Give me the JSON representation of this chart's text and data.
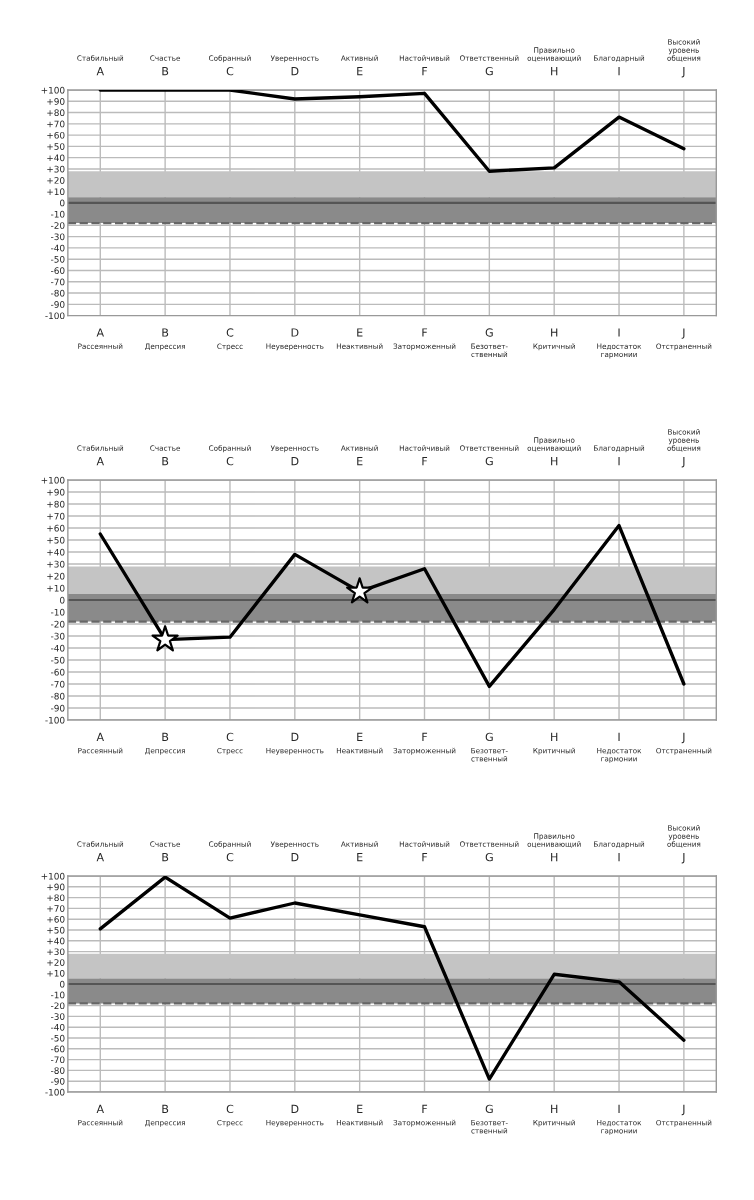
{
  "chart_data": [
    {
      "type": "line",
      "categories": [
        "A",
        "B",
        "C",
        "D",
        "E",
        "F",
        "G",
        "H",
        "I",
        "J"
      ],
      "series": [
        {
          "color": "#000000",
          "values": [
            100,
            100,
            100,
            92,
            94,
            97,
            28,
            31,
            76,
            48
          ]
        }
      ],
      "ylim": [
        -100,
        100
      ],
      "yticks": [
        {
          "value": 100,
          "label": "+100"
        },
        {
          "value": 90,
          "label": "+90"
        },
        {
          "value": 80,
          "label": "+80"
        },
        {
          "value": 70,
          "label": "+70"
        },
        {
          "value": 60,
          "label": "+60"
        },
        {
          "value": 50,
          "label": "+50"
        },
        {
          "value": 40,
          "label": "+40"
        },
        {
          "value": 30,
          "label": "+30"
        },
        {
          "value": 20,
          "label": "+20"
        },
        {
          "value": 10,
          "label": "+10"
        },
        0,
        -10,
        -20,
        -30,
        -40,
        -50,
        -60,
        -70,
        -80,
        -90,
        -100
      ],
      "bands": [
        {
          "axis": "y",
          "from": 5,
          "to": 28,
          "color": "#c4c4c4"
        },
        {
          "axis": "y",
          "from": -18,
          "to": 5,
          "color": "#8a8a8a"
        }
      ],
      "ref_lines": [
        {
          "axis": "y",
          "value": 0,
          "color": "#555555"
        },
        {
          "axis": "y",
          "value": -18,
          "color": "#666666",
          "line_style": "dashed"
        }
      ],
      "grid": true,
      "marker": "none",
      "line_style": "solid",
      "annotations": [
        "Стабильный",
        "Счастье",
        "Собранный",
        "Уверенность",
        "Активный",
        "Настойчивый",
        "Ответственный",
        "Правильно\nоценивающий",
        "Благодарный",
        "Высокий\nуровень\nобщения",
        "Рассеянный",
        "Депрессия",
        "Стресс",
        "Неуверенность",
        "Неактивный",
        "Заторможенный",
        "Безответ-\nственный",
        "Критичный",
        "Недостаток\nгармонии",
        "Отстраненный"
      ]
    },
    {
      "type": "line",
      "categories": [
        "A",
        "B",
        "C",
        "D",
        "E",
        "F",
        "G",
        "H",
        "I",
        "J"
      ],
      "series": [
        {
          "color": "#000000",
          "values": [
            55,
            -33,
            -31,
            38,
            7,
            26,
            -72,
            -8,
            62,
            -70
          ]
        },
        {
          "type": "scatter",
          "x": [
            "B",
            "E"
          ],
          "color": "#ffffff",
          "marker": "star",
          "values": [
            -33,
            7
          ]
        }
      ],
      "ylim": [
        -100,
        100
      ],
      "yticks": [
        {
          "value": 100,
          "label": "+100"
        },
        {
          "value": 90,
          "label": "+90"
        },
        {
          "value": 80,
          "label": "+80"
        },
        {
          "value": 70,
          "label": "+70"
        },
        {
          "value": 60,
          "label": "+60"
        },
        {
          "value": 50,
          "label": "+50"
        },
        {
          "value": 40,
          "label": "+40"
        },
        {
          "value": 30,
          "label": "+30"
        },
        {
          "value": 20,
          "label": "+20"
        },
        {
          "value": 10,
          "label": "+10"
        },
        0,
        -10,
        -20,
        -30,
        -40,
        -50,
        -60,
        -70,
        -80,
        -90,
        -100
      ],
      "bands": [
        {
          "axis": "y",
          "from": 5,
          "to": 28,
          "color": "#c4c4c4"
        },
        {
          "axis": "y",
          "from": -18,
          "to": 5,
          "color": "#8a8a8a"
        }
      ],
      "ref_lines": [
        {
          "axis": "y",
          "value": 0,
          "color": "#555555"
        },
        {
          "axis": "y",
          "value": -18,
          "color": "#666666",
          "line_style": "dashed"
        }
      ],
      "grid": true,
      "marker": "none",
      "line_style": "solid",
      "annotations": [
        "Стабильный",
        "Счастье",
        "Собранный",
        "Уверенность",
        "Активный",
        "Настойчивый",
        "Ответственный",
        "Правильно\nоценивающий",
        "Благодарный",
        "Высокий\nуровень\nобщения",
        "Рассеянный",
        "Депрессия",
        "Стресс",
        "Неуверенность",
        "Неактивный",
        "Заторможенный",
        "Безответ-\nственный",
        "Критичный",
        "Недостаток\nгармонии",
        "Отстраненный"
      ]
    },
    {
      "type": "line",
      "categories": [
        "A",
        "B",
        "C",
        "D",
        "E",
        "F",
        "G",
        "H",
        "I",
        "J"
      ],
      "series": [
        {
          "color": "#000000",
          "values": [
            51,
            99,
            61,
            75,
            64,
            53,
            -88,
            9,
            2,
            -52
          ]
        }
      ],
      "ylim": [
        -100,
        100
      ],
      "yticks": [
        {
          "value": 100,
          "label": "+100"
        },
        {
          "value": 90,
          "label": "+90"
        },
        {
          "value": 80,
          "label": "+80"
        },
        {
          "value": 70,
          "label": "+70"
        },
        {
          "value": 60,
          "label": "+60"
        },
        {
          "value": 50,
          "label": "+50"
        },
        {
          "value": 40,
          "label": "+40"
        },
        {
          "value": 30,
          "label": "+30"
        },
        {
          "value": 20,
          "label": "+20"
        },
        {
          "value": 10,
          "label": "+10"
        },
        0,
        -10,
        -20,
        -30,
        -40,
        -50,
        -60,
        -70,
        -80,
        -90,
        -100
      ],
      "bands": [
        {
          "axis": "y",
          "from": 5,
          "to": 28,
          "color": "#c4c4c4"
        },
        {
          "axis": "y",
          "from": -18,
          "to": 5,
          "color": "#8a8a8a"
        }
      ],
      "ref_lines": [
        {
          "axis": "y",
          "value": 0,
          "color": "#555555"
        },
        {
          "axis": "y",
          "value": -18,
          "color": "#666666",
          "line_style": "dashed"
        }
      ],
      "grid": true,
      "marker": "none",
      "line_style": "solid",
      "annotations": [
        "Стабильный",
        "Счастье",
        "Собранный",
        "Уверенность",
        "Активный",
        "Настойчивый",
        "Ответственный",
        "Правильно\nоценивающий",
        "Благодарный",
        "Высокий\nуровень\nобщения",
        "Рассеянный",
        "Депрессия",
        "Стресс",
        "Неуверенность",
        "Неактивный",
        "Заторможенный",
        "Безответ-\nственный",
        "Критичный",
        "Недостаток\nгармонии",
        "Отстраненный"
      ]
    }
  ]
}
